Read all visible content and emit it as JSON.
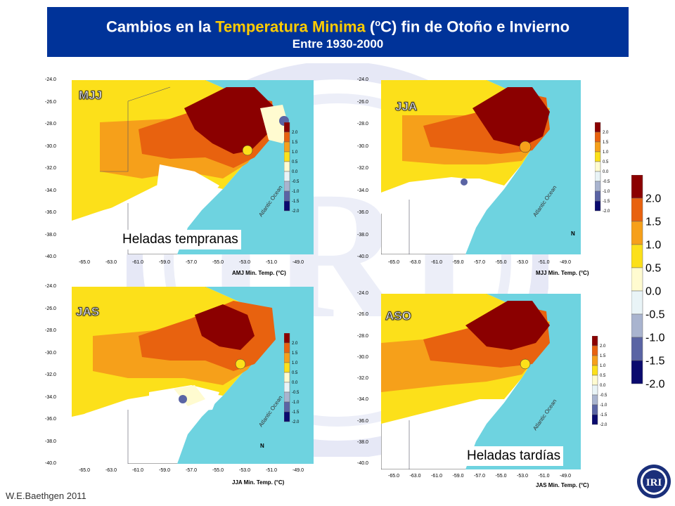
{
  "title": {
    "prefix": "Cambios en la ",
    "highlight": "Temperatura Minima",
    "unit_open": " (",
    "unit_sup": "o",
    "unit_rest": "C) fin de Otoño e Invierno",
    "subtitle": "Entre 1930-2000"
  },
  "panels": [
    {
      "label": "MJJ",
      "footer": "AMJ Min. Temp. (°C)"
    },
    {
      "label": "JJA",
      "footer": "MJJ Min. Temp. (°C)"
    },
    {
      "label": "JAS",
      "footer": "JJA Min. Temp. (°C)"
    },
    {
      "label": "ASO",
      "footer": "JAS Min. Temp. (°C)"
    }
  ],
  "lat_ticks": [
    "-24.0",
    "-26.0",
    "-28.0",
    "-30.0",
    "-32.0",
    "-34.0",
    "-36.0",
    "-38.0",
    "-40.0"
  ],
  "lon_ticks": [
    "-65.0",
    "-63.0",
    "-61.0",
    "-59.0",
    "-57.0",
    "-55.0",
    "-53.0",
    "-51.0",
    "-49.0"
  ],
  "ocean_label": "Atlantic Ocean",
  "north_label": "N",
  "annotations": {
    "early": "Heladas tempranas",
    "late": "Heladas tardías"
  },
  "legend": {
    "labels": [
      "2.0",
      "1.5",
      "1.0",
      "0.5",
      "0.0",
      "-0.5",
      "-1.0",
      "-1.5",
      "-2.0"
    ],
    "colors": [
      "#8b0000",
      "#e8620f",
      "#f6a01a",
      "#fce01a",
      "#fffbd0",
      "#e9f4f7",
      "#a9b4cf",
      "#5a64a4",
      "#0a0a6e"
    ]
  },
  "credit": "W.E.Baethgen 2011",
  "logo": "IRI"
}
